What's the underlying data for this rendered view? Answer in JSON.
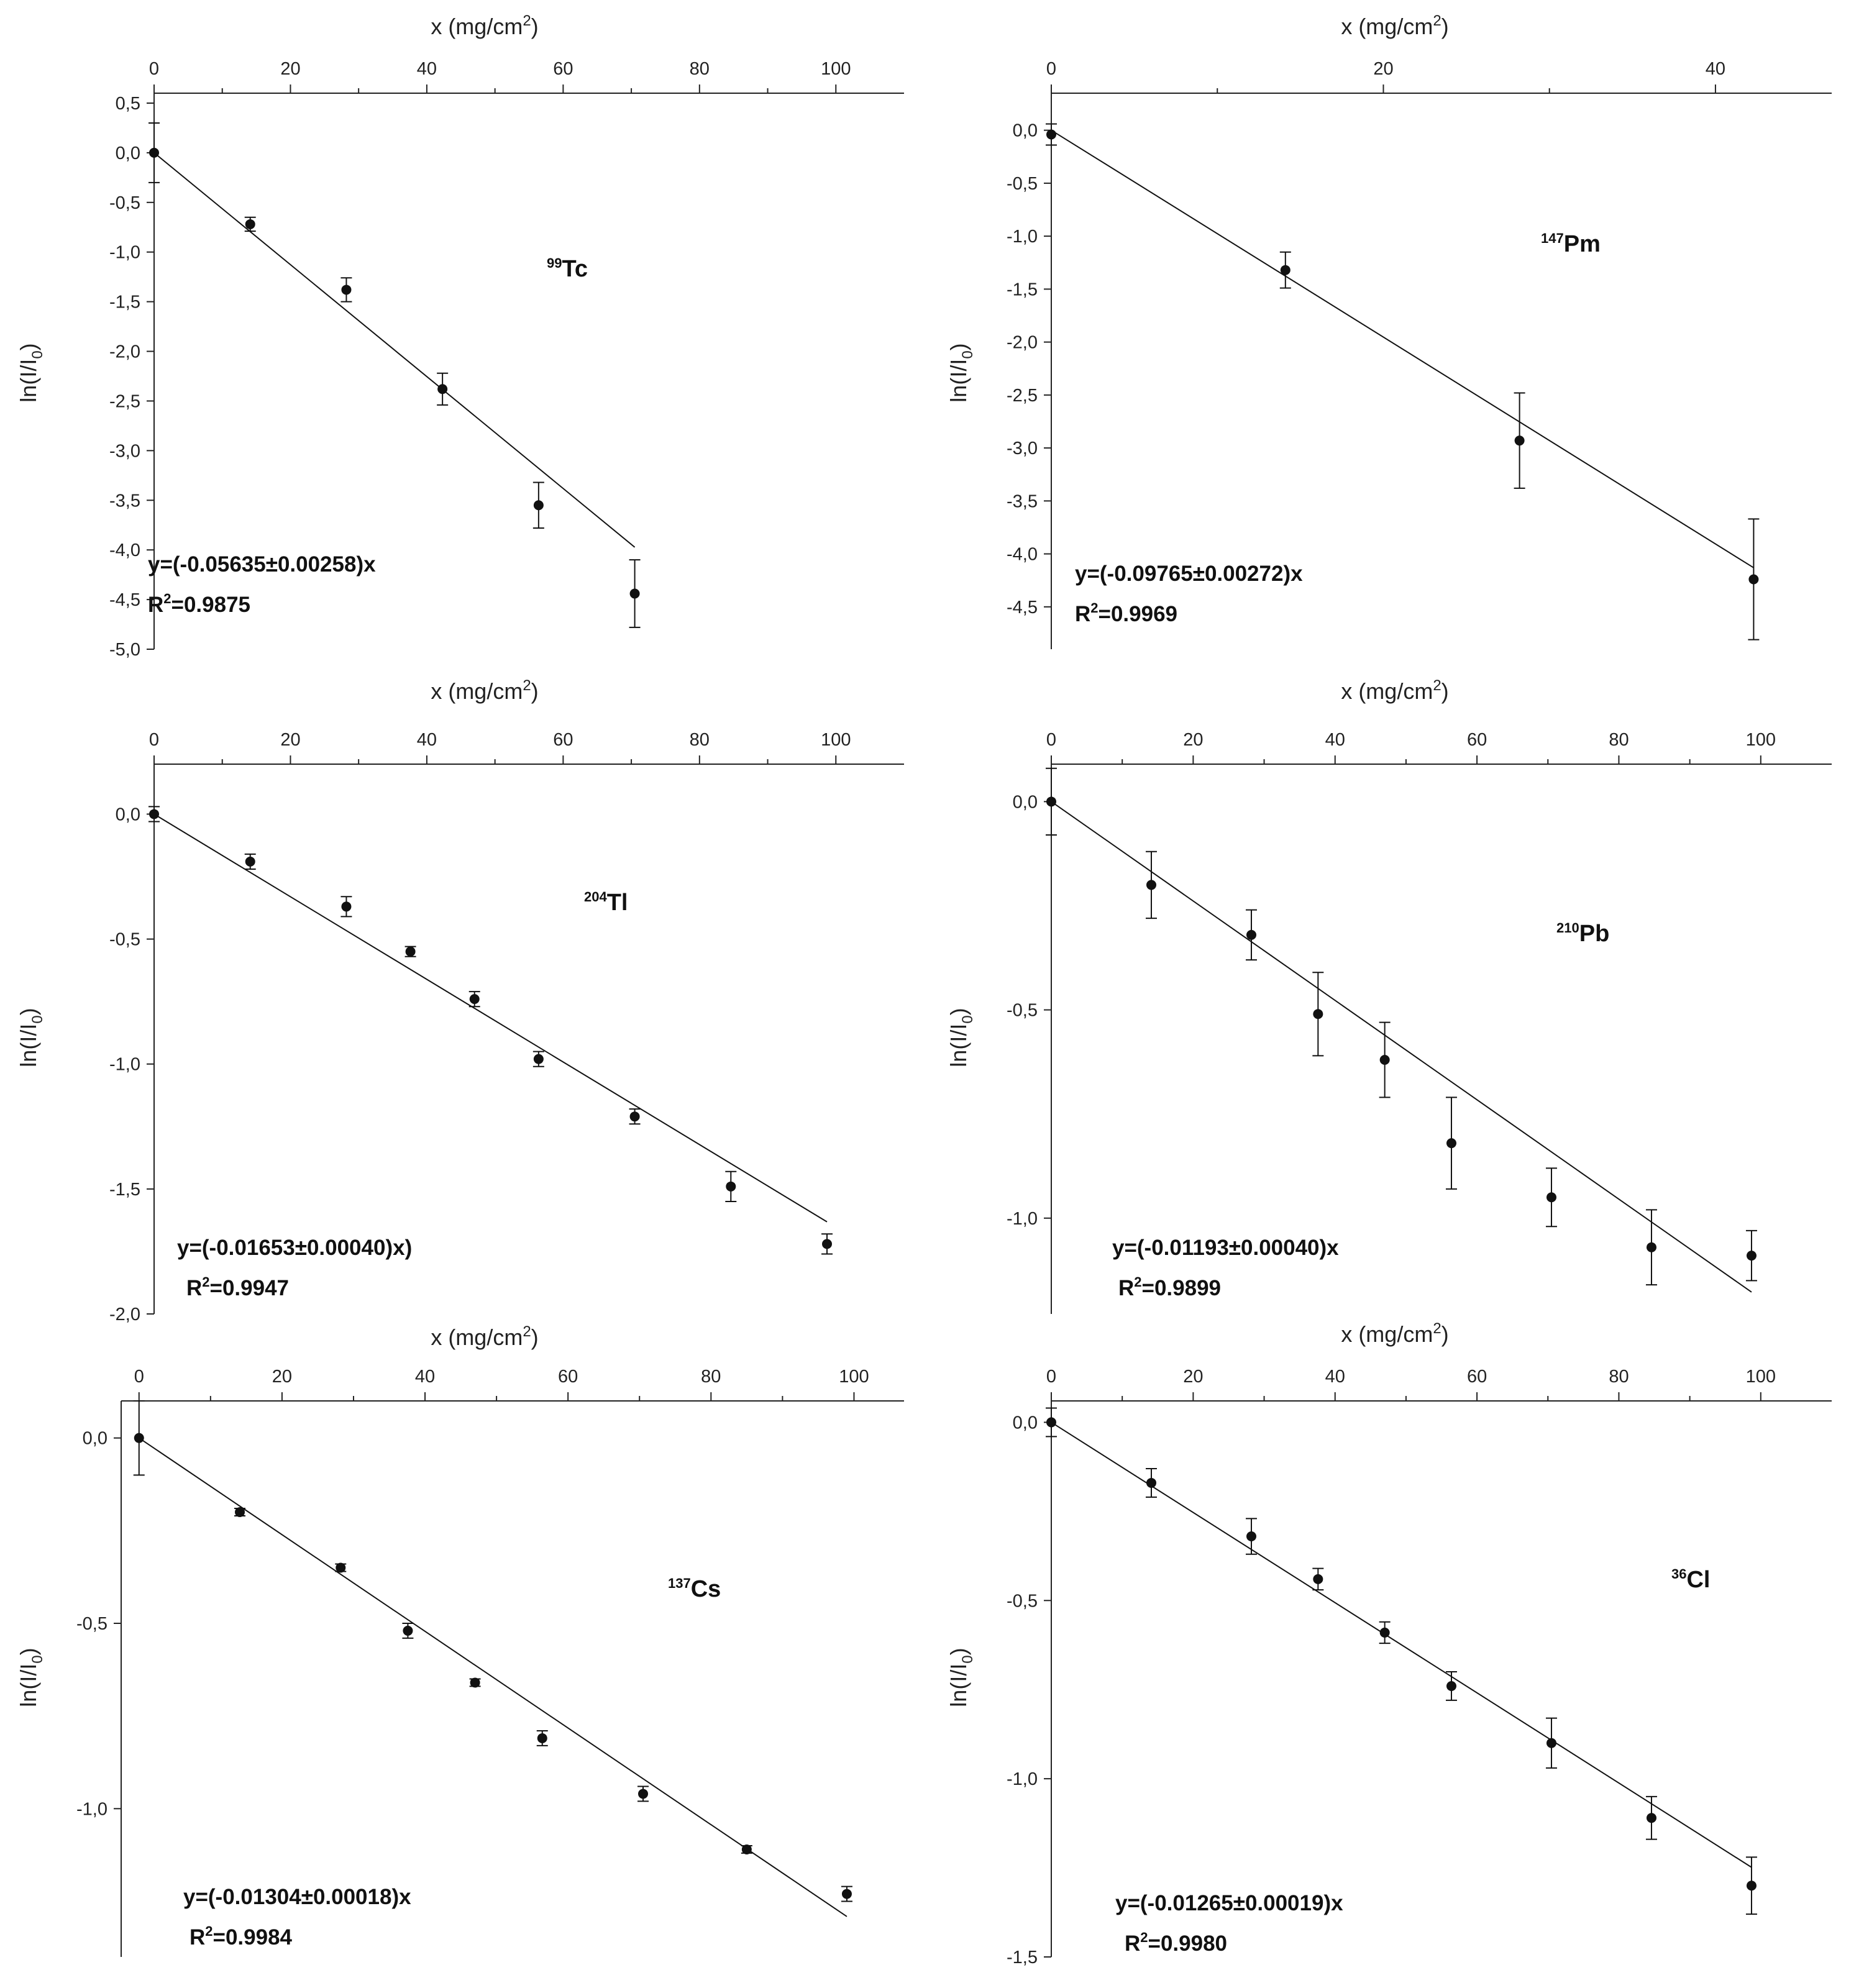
{
  "figure": {
    "x_axis_title": "x (mg/cm",
    "x_axis_title_sup": "2",
    "x_axis_title_end": ")",
    "y_axis_title": "ln(I/I",
    "y_axis_title_sub": "0",
    "y_axis_title_end": ")",
    "colors": {
      "ink": "#111111",
      "background": "#ffffff"
    }
  },
  "chart_data": [
    {
      "type": "scatter",
      "isotope_mass": "99",
      "isotope_symbol": "Tc",
      "title": "99Tc",
      "xlabel": "x (mg/cm2)",
      "ylabel": "ln(I/I0)",
      "xlim": [
        0,
        110
      ],
      "ylim": [
        -5.0,
        0.6
      ],
      "x_ticks": [
        0,
        20,
        40,
        60,
        80,
        100
      ],
      "x_tick_labels": [
        "0",
        "20",
        "40",
        "60",
        "80",
        "100"
      ],
      "y_ticks": [
        0.5,
        0.0,
        -0.5,
        -1.0,
        -1.5,
        -2.0,
        -2.5,
        -3.0,
        -3.5,
        -4.0,
        -4.5,
        -5.0
      ],
      "y_tick_labels": [
        "0,5",
        "0,0",
        "-0,5",
        "-1,0",
        "-1,5",
        "-2,0",
        "-2,5",
        "-3,0",
        "-3,5",
        "-4,0",
        "-4,5",
        "-5,0"
      ],
      "points": [
        {
          "x": 0,
          "y": 0.0,
          "err": 0.3
        },
        {
          "x": 14.1,
          "y": -0.72,
          "err": 0.07
        },
        {
          "x": 28.2,
          "y": -1.38,
          "err": 0.12
        },
        {
          "x": 42.3,
          "y": -2.38,
          "err": 0.16
        },
        {
          "x": 56.4,
          "y": -3.55,
          "err": 0.23
        },
        {
          "x": 70.5,
          "y": -4.44,
          "err": 0.34
        }
      ],
      "fit": {
        "slope": -0.05635,
        "x_range": [
          0,
          70.5
        ]
      },
      "equation_main": "y=(-0.05635±0.00258)x",
      "r2_label": "R",
      "r2_sup": "2",
      "r2_value": "=0.9875"
    },
    {
      "type": "scatter",
      "isotope_mass": "147",
      "isotope_symbol": "Pm",
      "title": "147Pm",
      "xlabel": "x (mg/cm2)",
      "ylabel": "ln(I/I0)",
      "xlim": [
        0,
        47
      ],
      "ylim": [
        -4.9,
        0.35
      ],
      "x_ticks": [
        0,
        20,
        40
      ],
      "x_tick_labels": [
        "0",
        "20",
        "40"
      ],
      "y_ticks": [
        0.0,
        -0.5,
        -1.0,
        -1.5,
        -2.0,
        -2.5,
        -3.0,
        -3.5,
        -4.0,
        -4.5
      ],
      "y_tick_labels": [
        "0,0",
        "-0,5",
        "-1,0",
        "-1,5",
        "-2,0",
        "-2,5",
        "-3,0",
        "-3,5",
        "-4,0",
        "-4,5"
      ],
      "points": [
        {
          "x": 0,
          "y": -0.04,
          "err": 0.1
        },
        {
          "x": 14.1,
          "y": -1.32,
          "err": 0.17
        },
        {
          "x": 28.2,
          "y": -2.93,
          "err": 0.45
        },
        {
          "x": 42.3,
          "y": -4.24,
          "err": 0.57
        }
      ],
      "fit": {
        "slope": -0.09765,
        "x_range": [
          0,
          42.3
        ]
      },
      "equation_main": "y=(-0.09765±0.00272)x",
      "r2_label": "R",
      "r2_sup": "2",
      "r2_value": "=0.9969"
    },
    {
      "type": "scatter",
      "isotope_mass": "204",
      "isotope_symbol": "Tl",
      "title": "204Tl",
      "xlabel": "x (mg/cm2)",
      "ylabel": "ln(I/I0)",
      "xlim": [
        0,
        110
      ],
      "ylim": [
        -2.0,
        0.2
      ],
      "x_ticks": [
        0,
        20,
        40,
        60,
        80,
        100
      ],
      "x_tick_labels": [
        "0",
        "20",
        "40",
        "60",
        "80",
        "100"
      ],
      "y_ticks": [
        0.0,
        -0.5,
        -1.0,
        -1.5,
        -2.0
      ],
      "y_tick_labels": [
        "0,0",
        "-0,5",
        "-1,0",
        "-1,5",
        "-2,0"
      ],
      "points": [
        {
          "x": 0,
          "y": 0.0,
          "err": 0.03
        },
        {
          "x": 14.1,
          "y": -0.19,
          "err": 0.03
        },
        {
          "x": 28.2,
          "y": -0.37,
          "err": 0.04
        },
        {
          "x": 37.6,
          "y": -0.55,
          "err": 0.02
        },
        {
          "x": 47.0,
          "y": -0.74,
          "err": 0.03
        },
        {
          "x": 56.4,
          "y": -0.98,
          "err": 0.03
        },
        {
          "x": 70.5,
          "y": -1.21,
          "err": 0.03
        },
        {
          "x": 84.6,
          "y": -1.49,
          "err": 0.06
        },
        {
          "x": 98.7,
          "y": -1.72,
          "err": 0.04
        }
      ],
      "fit": {
        "slope": -0.01653,
        "x_range": [
          0,
          98.7
        ]
      },
      "equation_main": "y=(-0.01653±0.00040)x)",
      "r2_label": "R",
      "r2_sup": "2",
      "r2_value": "=0.9947"
    },
    {
      "type": "scatter",
      "isotope_mass": "210",
      "isotope_symbol": "Pb",
      "title": "210Pb",
      "xlabel": "x (mg/cm2)",
      "ylabel": "ln(I/I0)",
      "xlim": [
        0,
        110
      ],
      "ylim": [
        -1.23,
        0.09
      ],
      "x_ticks": [
        0,
        20,
        40,
        60,
        80,
        100
      ],
      "x_tick_labels": [
        "0",
        "20",
        "40",
        "60",
        "80",
        "100"
      ],
      "y_ticks": [
        0.0,
        -0.5,
        -1.0
      ],
      "y_tick_labels": [
        "0,0",
        "-0,5",
        "-1,0"
      ],
      "points": [
        {
          "x": 0,
          "y": 0.0,
          "err": 0.08
        },
        {
          "x": 14.1,
          "y": -0.2,
          "err": 0.08
        },
        {
          "x": 28.2,
          "y": -0.32,
          "err": 0.06
        },
        {
          "x": 37.6,
          "y": -0.51,
          "err": 0.1
        },
        {
          "x": 47.0,
          "y": -0.62,
          "err": 0.09
        },
        {
          "x": 56.4,
          "y": -0.82,
          "err": 0.11
        },
        {
          "x": 70.5,
          "y": -0.95,
          "err": 0.07
        },
        {
          "x": 84.6,
          "y": -1.07,
          "err": 0.09
        },
        {
          "x": 98.7,
          "y": -1.09,
          "err": 0.06
        }
      ],
      "fit": {
        "slope": -0.01193,
        "x_range": [
          0,
          98.7
        ]
      },
      "equation_main": "y=(-0.01193±0.00040)x",
      "r2_label": "R",
      "r2_sup": "2",
      "r2_value": "=0.9899"
    },
    {
      "type": "scatter",
      "isotope_mass": "137",
      "isotope_symbol": "Cs",
      "title": "137Cs",
      "xlabel": "x (mg/cm2)",
      "ylabel": "ln(I/I0)",
      "xlim": [
        -2.5,
        107
      ],
      "ylim": [
        -1.4,
        0.1
      ],
      "x_ticks": [
        0,
        20,
        40,
        60,
        80,
        100
      ],
      "x_tick_labels": [
        "0",
        "20",
        "40",
        "60",
        "80",
        "100"
      ],
      "y_ticks": [
        0.0,
        -0.5,
        -1.0
      ],
      "y_tick_labels": [
        "0,0",
        "-0,5",
        "-1,0"
      ],
      "points": [
        {
          "x": 0,
          "y": 0.0,
          "err": 0.1
        },
        {
          "x": 14.1,
          "y": -0.2,
          "err": 0.01
        },
        {
          "x": 28.2,
          "y": -0.35,
          "err": 0.01
        },
        {
          "x": 37.6,
          "y": -0.52,
          "err": 0.02
        },
        {
          "x": 47.0,
          "y": -0.66,
          "err": 0.01
        },
        {
          "x": 56.4,
          "y": -0.81,
          "err": 0.02
        },
        {
          "x": 70.5,
          "y": -0.96,
          "err": 0.02
        },
        {
          "x": 85.0,
          "y": -1.11,
          "err": 0.01
        },
        {
          "x": 99.0,
          "y": -1.23,
          "err": 0.02
        }
      ],
      "fit": {
        "slope": -0.01304,
        "x_range": [
          0,
          99
        ]
      },
      "equation_main": "y=(-0.01304±0.00018)x",
      "r2_label": "R",
      "r2_sup": "2",
      "r2_value": "=0.9984"
    },
    {
      "type": "scatter",
      "isotope_mass": "36",
      "isotope_symbol": "Cl",
      "title": "36Cl",
      "xlabel": "x (mg/cm2)",
      "ylabel": "ln(I/I0)",
      "xlim": [
        0,
        110
      ],
      "ylim": [
        -1.5,
        0.06
      ],
      "x_ticks": [
        0,
        20,
        40,
        60,
        80,
        100
      ],
      "x_tick_labels": [
        "0",
        "20",
        "40",
        "60",
        "80",
        "100"
      ],
      "y_ticks": [
        0.0,
        -0.5,
        -1.0,
        -1.5
      ],
      "y_tick_labels": [
        "0,0",
        "-0,5",
        "-1,0",
        "-1,5"
      ],
      "points": [
        {
          "x": 0,
          "y": 0.0,
          "err": 0.04
        },
        {
          "x": 14.1,
          "y": -0.17,
          "err": 0.04
        },
        {
          "x": 28.2,
          "y": -0.32,
          "err": 0.05
        },
        {
          "x": 37.6,
          "y": -0.44,
          "err": 0.03
        },
        {
          "x": 47.0,
          "y": -0.59,
          "err": 0.03
        },
        {
          "x": 56.4,
          "y": -0.74,
          "err": 0.04
        },
        {
          "x": 70.5,
          "y": -0.9,
          "err": 0.07
        },
        {
          "x": 84.6,
          "y": -1.11,
          "err": 0.06
        },
        {
          "x": 98.7,
          "y": -1.3,
          "err": 0.08
        }
      ],
      "fit": {
        "slope": -0.01265,
        "x_range": [
          0,
          98.7
        ]
      },
      "equation_main": "y=(-0.01265±0.00019)x",
      "r2_label": "R",
      "r2_sup": "2",
      "r2_value": "=0.9980"
    }
  ]
}
